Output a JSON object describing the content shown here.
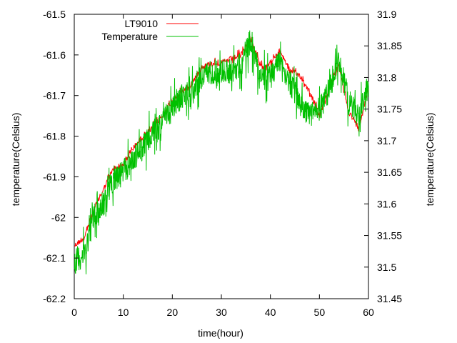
{
  "chart_data": {
    "type": "line",
    "title": "",
    "xlabel": "time(hour)",
    "ylabel_left": "temperature(Celsius)",
    "ylabel_right": "temperature(Celsius)",
    "xlim": [
      0,
      60
    ],
    "ylim_left": [
      -62.2,
      -61.5
    ],
    "ylim_right": [
      31.45,
      31.9
    ],
    "x_ticks": [
      "0",
      "10",
      "20",
      "30",
      "40",
      "50",
      "60"
    ],
    "y_left_ticks": [
      "-61.5",
      "-61.6",
      "-61.7",
      "-61.8",
      "-61.9",
      "-62",
      "-62.1",
      "-62.2"
    ],
    "y_right_ticks": [
      "31.9",
      "31.85",
      "31.8",
      "31.75",
      "31.7",
      "31.65",
      "31.6",
      "31.55",
      "31.5",
      "31.45"
    ],
    "grid": false,
    "legend_position": "top-left",
    "series": [
      {
        "name": "LT9010",
        "axis": "left",
        "color": "#ff0000",
        "x": [
          0,
          2,
          4,
          6,
          8,
          10,
          12,
          14,
          16,
          18,
          20,
          22,
          24,
          26,
          28,
          30,
          32,
          34,
          36,
          38,
          40,
          42,
          44,
          46,
          48,
          50,
          52,
          54,
          56,
          58,
          60
        ],
        "y": [
          -62.07,
          -62.05,
          -61.98,
          -61.93,
          -61.88,
          -61.87,
          -61.83,
          -61.8,
          -61.78,
          -61.75,
          -61.71,
          -61.69,
          -61.67,
          -61.63,
          -61.62,
          -61.62,
          -61.61,
          -61.6,
          -61.56,
          -61.63,
          -61.62,
          -61.59,
          -61.64,
          -61.65,
          -61.69,
          -61.75,
          -61.68,
          -61.63,
          -61.74,
          -61.78,
          -61.68
        ]
      },
      {
        "name": "Temperature",
        "axis": "right",
        "color": "#00c000",
        "x": [
          0,
          2,
          4,
          6,
          8,
          10,
          12,
          14,
          16,
          18,
          20,
          22,
          24,
          26,
          28,
          30,
          32,
          34,
          36,
          38,
          40,
          42,
          44,
          46,
          48,
          50,
          52,
          54,
          56,
          58,
          60
        ],
        "y": [
          31.51,
          31.52,
          31.58,
          31.6,
          31.64,
          31.65,
          31.67,
          31.69,
          31.71,
          31.73,
          31.75,
          31.77,
          31.78,
          31.8,
          31.81,
          31.81,
          31.81,
          31.82,
          31.86,
          31.8,
          31.8,
          31.83,
          31.79,
          31.76,
          31.74,
          31.75,
          31.78,
          31.83,
          31.76,
          31.74,
          31.79
        ]
      }
    ]
  }
}
